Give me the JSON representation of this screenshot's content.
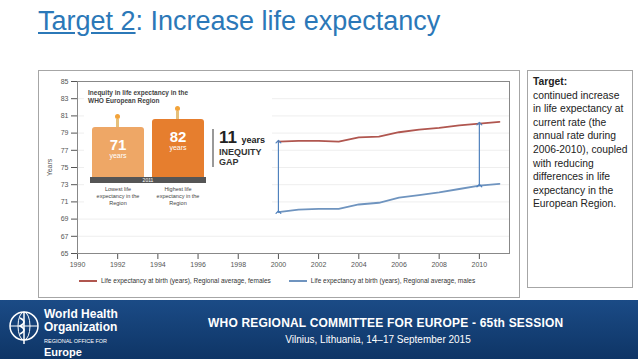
{
  "chart_data": {
    "type": "line",
    "y_label": "Years",
    "x": [
      2000,
      2001,
      2002,
      2003,
      2004,
      2005,
      2006,
      2007,
      2008,
      2009,
      2010,
      2011
    ],
    "series": [
      {
        "name": "Life expectancy at birth (years), Regional average, females",
        "color": "#b0564f",
        "values": [
          78.0,
          78.1,
          78.1,
          78.0,
          78.5,
          78.6,
          79.1,
          79.4,
          79.6,
          79.9,
          80.1,
          80.3
        ]
      },
      {
        "name": "Life expectancy at birth (years), Regional average, males",
        "color": "#6f94bf",
        "values": [
          69.8,
          70.1,
          70.2,
          70.2,
          70.7,
          70.9,
          71.5,
          71.8,
          72.1,
          72.5,
          72.9,
          73.1
        ]
      }
    ],
    "xlim": [
      1990,
      2011.5
    ],
    "xticks": [
      1990,
      1992,
      1994,
      1996,
      1998,
      2000,
      2002,
      2004,
      2006,
      2008,
      2010
    ],
    "ylim": [
      65,
      85
    ],
    "yticks": [
      65,
      67,
      69,
      71,
      73,
      75,
      77,
      79,
      81,
      83,
      85
    ],
    "grid": true,
    "legend": "bottom",
    "inset": {
      "title": "Inequity in life expectancy in the WHO European Region",
      "year": "2011",
      "lowest": {
        "value": 71,
        "unit": "years",
        "label": "Lowest life expectancy in the Region"
      },
      "highest": {
        "value": 82,
        "unit": "years",
        "label": "Highest life expectancy in the Region"
      },
      "gap": {
        "value": 11,
        "unit": "years",
        "label": "INEQUITY GAP"
      }
    }
  },
  "slide": {
    "title_link": "Target 2",
    "title_rest": ": Increase life expectancy",
    "target_heading": "Target:",
    "target_text": "continued increase in life expectancy at current rate (the annual rate during 2006-2010), coupled with reducing differences in life expectancy in the European Region.",
    "org_lines": [
      "World Health",
      "Organization"
    ],
    "office_lines": [
      "REGIONAL OFFICE FOR",
      "Europe"
    ],
    "event": "WHO REGIONAL COMMITTEE FOR EUROPE - 65th SESSION",
    "event_place": "Vilnius, Lithuania, 14–17 September 2015"
  }
}
